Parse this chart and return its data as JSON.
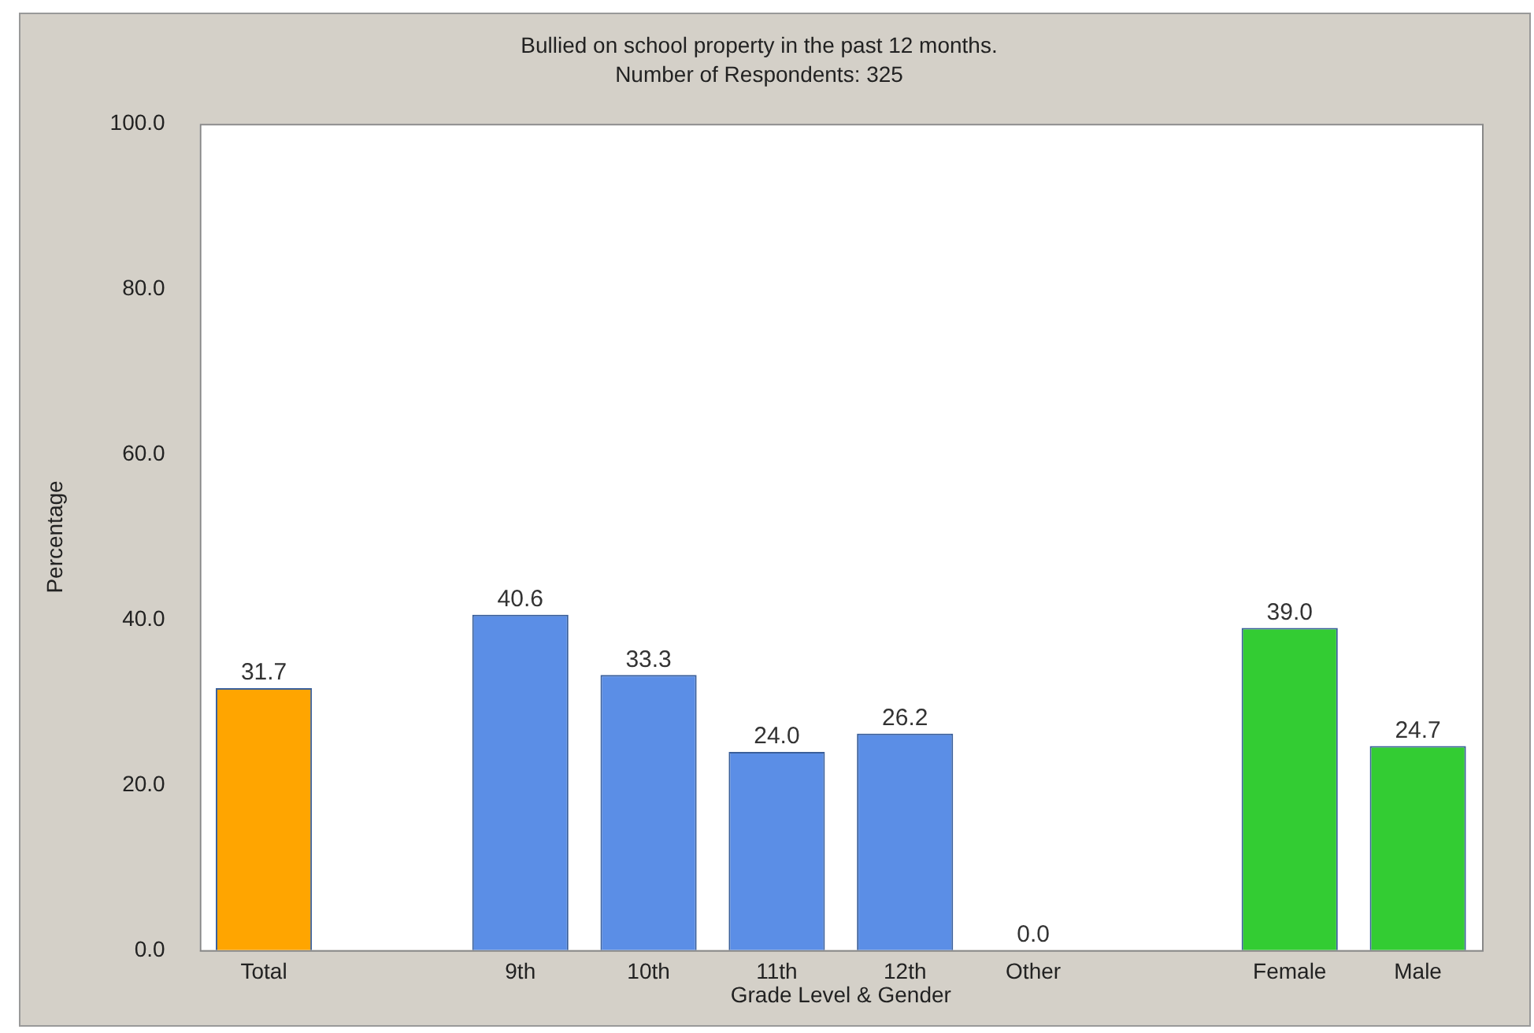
{
  "chart_data": {
    "type": "bar",
    "title": "Bullied on school property in the past 12 months.",
    "subtitle": "Number of Respondents: 325",
    "xlabel": "Grade Level & Gender",
    "ylabel": "Percentage",
    "categories": [
      "Total",
      null,
      "9th",
      "10th",
      "11th",
      "12th",
      "Other",
      null,
      "Female",
      "Male"
    ],
    "values": [
      31.7,
      null,
      40.6,
      33.3,
      24.0,
      26.2,
      0.0,
      null,
      39.0,
      24.7
    ],
    "colors": [
      "#ffa500",
      "#5b8ee6",
      "#5b8ee6",
      "#5b8ee6",
      "#5b8ee6",
      "#5b8ee6",
      "#5b8ee6",
      "#33cc33",
      "#33cc33",
      "#33cc33"
    ],
    "value_labels": [
      "31.7",
      null,
      "40.6",
      "33.3",
      "24.0",
      "26.2",
      "0.0",
      null,
      "39.0",
      "24.7"
    ],
    "ylim": [
      0,
      100
    ],
    "yticks": [
      {
        "value": 0,
        "label": "0.0"
      },
      {
        "value": 20,
        "label": "20.0"
      },
      {
        "value": 40,
        "label": "40.0"
      },
      {
        "value": 60,
        "label": "60.0"
      },
      {
        "value": 80,
        "label": "80.0"
      },
      {
        "value": 100,
        "label": "100.0"
      }
    ],
    "grid": false,
    "legend": false
  }
}
